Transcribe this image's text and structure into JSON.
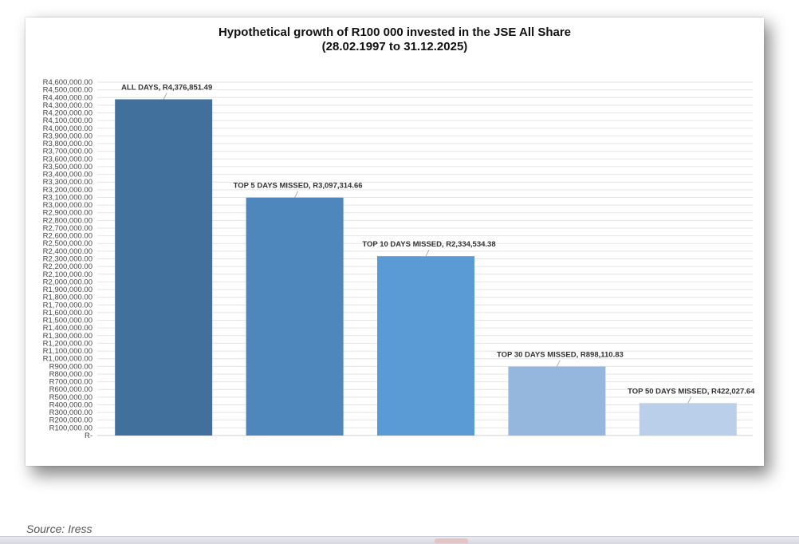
{
  "source": "Source: Iress",
  "chart_data": {
    "type": "bar",
    "title": "Hypothetical growth of R100 000 invested in the JSE All Share",
    "subtitle": "(28.02.1997 to 31.12.2025)",
    "categories": [
      "ALL DAYS",
      "TOP 5 DAYS MISSED",
      "TOP 10 DAYS MISSED",
      "TOP 30 DAYS MISSED",
      "TOP 50 DAYS MISSED"
    ],
    "values": [
      4376851.49,
      3097314.66,
      2334534.38,
      898110.83,
      422027.64
    ],
    "data_labels": [
      "ALL DAYS,  R4,376,851.49",
      "TOP 5 DAYS MISSED,  R3,097,314.66",
      "TOP 10 DAYS MISSED,  R2,334,534.38",
      "TOP 30 DAYS MISSED,  R898,110.83",
      "TOP 50 DAYS MISSED,  R422,027.64"
    ],
    "bar_colors": [
      "#41709c",
      "#4d87bb",
      "#5b9bd5",
      "#95b7de",
      "#b9cfea"
    ],
    "ylim": [
      0,
      4600000
    ],
    "ytick_step": 100000,
    "zero_label": "R-",
    "grid": true,
    "legend": "none"
  }
}
